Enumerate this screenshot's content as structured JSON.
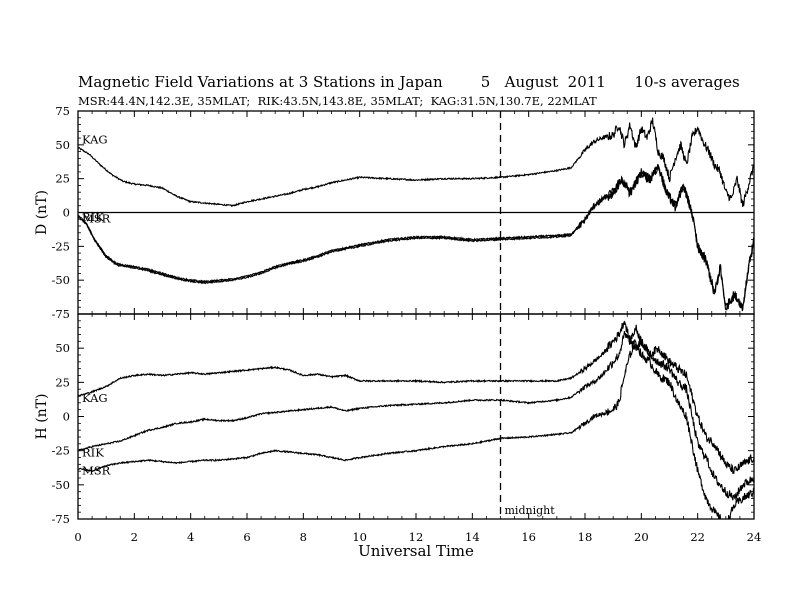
{
  "chart_data": {
    "type": "line",
    "title": "Magnetic Field Variations at 3 Stations in Japan        5   August  2011      10-s averages",
    "subtitle": "MSR:44.4N,142.3E, 35MLAT;  RIK:43.5N,143.8E, 35MLAT;  KAG:31.5N,130.7E, 22MLAT",
    "xlabel": "Universal Time",
    "xlim": [
      0,
      24
    ],
    "x_ticks": [
      0,
      2,
      4,
      6,
      8,
      10,
      12,
      14,
      16,
      18,
      20,
      22,
      24
    ],
    "x_tick_labels": [
      "0",
      "2",
      "4",
      "6",
      "8",
      "10",
      "12",
      "14",
      "16",
      "18",
      "20",
      "22",
      "24"
    ],
    "annotation": {
      "label": "midnight",
      "x": 15,
      "style": "dashed vertical line"
    },
    "panels": [
      {
        "ylabel": "D (nT)",
        "ylim": [
          -75,
          75
        ],
        "y_ticks": [
          -75,
          -50,
          -25,
          0,
          25,
          50,
          75
        ],
        "y_tick_labels": [
          "-75",
          "-50",
          "-25",
          "0",
          "25",
          "50",
          "75"
        ],
        "zero_line": true,
        "series": [
          {
            "name": "KAG",
            "x": [
              0,
              0.4,
              0.8,
              1.2,
              1.6,
              2,
              2.5,
              3,
              3.5,
              4,
              4.5,
              5,
              5.5,
              6,
              6.5,
              7,
              7.5,
              8,
              8.5,
              9,
              9.5,
              10,
              11,
              12,
              13,
              14,
              15,
              16,
              17,
              17.5,
              18,
              18.3,
              18.6,
              19,
              19.2,
              19.4,
              19.6,
              19.8,
              20,
              20.2,
              20.4,
              20.6,
              20.8,
              21,
              21.2,
              21.4,
              21.6,
              21.8,
              22,
              22.2,
              22.4,
              22.6,
              22.8,
              23,
              23.2,
              23.4,
              23.6,
              23.8,
              24
            ],
            "values": [
              48,
              43,
              35,
              28,
              23,
              21,
              20,
              18,
              12,
              8,
              7,
              6,
              5,
              8,
              10,
              12,
              14,
              17,
              19,
              22,
              24,
              26,
              25,
              24,
              25,
              25,
              26,
              28,
              31,
              33,
              46,
              52,
              55,
              57,
              65,
              50,
              65,
              48,
              62,
              55,
              68,
              45,
              40,
              25,
              40,
              50,
              35,
              55,
              63,
              52,
              45,
              35,
              30,
              15,
              10,
              25,
              5,
              20,
              35
            ]
          },
          {
            "name": "RIK",
            "x": [
              0,
              0.3,
              0.6,
              1,
              1.4,
              2,
              2.5,
              3,
              3.5,
              4,
              4.5,
              5,
              5.5,
              6,
              6.5,
              7,
              7.5,
              8,
              8.5,
              9,
              9.5,
              10,
              11,
              12,
              13,
              14,
              15,
              16,
              17,
              17.5,
              18,
              18.3,
              18.6,
              19,
              19.3,
              19.6,
              20,
              20.3,
              20.6,
              20.9,
              21.2,
              21.5,
              21.8,
              22,
              22.3,
              22.6,
              22.8,
              23,
              23.3,
              23.6,
              23.8,
              24
            ],
            "values": [
              -2,
              -8,
              -20,
              -32,
              -38,
              -40,
              -42,
              -45,
              -48,
              -50,
              -51,
              -50,
              -49,
              -47,
              -44,
              -40,
              -37,
              -35,
              -32,
              -28,
              -26,
              -24,
              -20,
              -18,
              -18,
              -20,
              -19,
              -18,
              -17,
              -16,
              -5,
              5,
              10,
              15,
              25,
              15,
              30,
              25,
              35,
              15,
              5,
              20,
              0,
              -25,
              -35,
              -60,
              -40,
              -70,
              -60,
              -70,
              -40,
              -20
            ]
          },
          {
            "name": "MSR",
            "x": [
              0,
              0.3,
              0.6,
              1,
              1.4,
              2,
              2.5,
              3,
              3.5,
              4,
              4.5,
              5,
              5.5,
              6,
              6.5,
              7,
              7.5,
              8,
              8.5,
              9,
              9.5,
              10,
              11,
              12,
              13,
              14,
              15,
              16,
              17,
              17.5,
              18,
              18.3,
              18.6,
              19,
              19.3,
              19.6,
              20,
              20.3,
              20.6,
              20.9,
              21.2,
              21.5,
              21.8,
              22,
              22.3,
              22.6,
              22.8,
              23,
              23.3,
              23.6,
              23.8,
              24
            ],
            "values": [
              -3,
              -9,
              -21,
              -33,
              -39,
              -41,
              -43,
              -46,
              -49,
              -51,
              -52,
              -51,
              -50,
              -48,
              -45,
              -41,
              -38,
              -36,
              -33,
              -29,
              -27,
              -25,
              -21,
              -19,
              -19,
              -21,
              -20,
              -19,
              -18,
              -17,
              -6,
              4,
              9,
              14,
              24,
              14,
              29,
              24,
              34,
              14,
              4,
              19,
              -1,
              -26,
              -36,
              -61,
              -41,
              -71,
              -61,
              -71,
              -41,
              -21
            ]
          }
        ]
      },
      {
        "ylabel": "H (nT)",
        "ylim": [
          -75,
          75
        ],
        "y_ticks": [
          -75,
          -50,
          -25,
          0,
          25,
          50,
          75
        ],
        "y_tick_labels": [
          "-75",
          "-50",
          "-25",
          "0",
          "25",
          "50",
          ""
        ],
        "zero_line": false,
        "series": [
          {
            "name": "KAG",
            "x": [
              0,
              0.5,
              1,
              1.5,
              2,
              2.5,
              3,
              3.5,
              4,
              4.5,
              5,
              5.5,
              6,
              6.5,
              7,
              7.5,
              8,
              8.5,
              9,
              9.5,
              10,
              11,
              12,
              13,
              14,
              15,
              16,
              17,
              17.5,
              18,
              18.3,
              18.6,
              19,
              19.2,
              19.4,
              19.6,
              19.8,
              20,
              20.3,
              20.6,
              21,
              21.3,
              21.6,
              22,
              22.3,
              22.6,
              23,
              23.3,
              23.6,
              24
            ],
            "values": [
              15,
              18,
              22,
              28,
              30,
              31,
              30,
              31,
              32,
              31,
              32,
              33,
              34,
              35,
              36,
              34,
              30,
              31,
              29,
              30,
              26,
              26,
              26,
              25,
              26,
              26,
              26,
              26,
              28,
              35,
              40,
              45,
              55,
              60,
              70,
              55,
              65,
              55,
              45,
              50,
              40,
              35,
              30,
              0,
              -15,
              -20,
              -35,
              -40,
              -35,
              -30
            ]
          },
          {
            "name": "RIK",
            "x": [
              0,
              0.5,
              1,
              1.5,
              2,
              2.5,
              3,
              3.5,
              4,
              4.5,
              5,
              5.5,
              6,
              6.5,
              7,
              7.5,
              8,
              8.5,
              9,
              9.5,
              10,
              11,
              12,
              13,
              14,
              15,
              16,
              17,
              17.5,
              18,
              18.3,
              18.6,
              19,
              19.2,
              19.4,
              19.6,
              19.8,
              20,
              20.3,
              20.6,
              21,
              21.3,
              21.6,
              22,
              22.3,
              22.6,
              23,
              23.3,
              23.6,
              24
            ],
            "values": [
              -25,
              -22,
              -20,
              -18,
              -14,
              -10,
              -8,
              -5,
              -4,
              -2,
              -3,
              -3,
              -1,
              2,
              3,
              4,
              5,
              6,
              7,
              4,
              6,
              8,
              9,
              10,
              12,
              12,
              10,
              12,
              14,
              22,
              25,
              30,
              40,
              45,
              60,
              55,
              50,
              55,
              45,
              40,
              35,
              25,
              20,
              -20,
              -30,
              -45,
              -55,
              -60,
              -50,
              -45
            ]
          },
          {
            "name": "MSR",
            "x": [
              0,
              0.5,
              1,
              1.5,
              2,
              2.5,
              3,
              3.5,
              4,
              4.5,
              5,
              5.5,
              6,
              6.5,
              7,
              7.5,
              8,
              8.5,
              9,
              9.5,
              10,
              11,
              12,
              13,
              14,
              15,
              16,
              17,
              17.5,
              18,
              18.3,
              18.6,
              19,
              19.2,
              19.4,
              19.6,
              19.8,
              20,
              20.3,
              20.6,
              21,
              21.3,
              21.6,
              22,
              22.3,
              22.6,
              23,
              23.3,
              23.6,
              24
            ],
            "values": [
              -38,
              -40,
              -36,
              -34,
              -33,
              -32,
              -33,
              -34,
              -33,
              -32,
              -32,
              -31,
              -30,
              -27,
              -25,
              -26,
              -27,
              -28,
              -30,
              -32,
              -30,
              -27,
              -25,
              -22,
              -20,
              -16,
              -15,
              -13,
              -12,
              -5,
              0,
              2,
              5,
              10,
              30,
              45,
              55,
              45,
              40,
              30,
              25,
              10,
              0,
              -40,
              -60,
              -70,
              -80,
              -65,
              -60,
              -55
            ]
          }
        ]
      }
    ]
  },
  "axis_labels": {
    "midnight": "midnight"
  },
  "colors": {
    "line": "#000000",
    "background": "#ffffff"
  }
}
